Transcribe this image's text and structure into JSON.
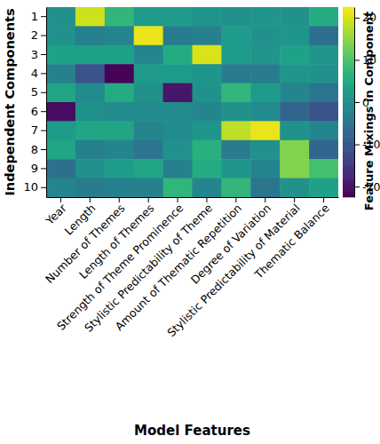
{
  "chart_data": {
    "type": "heatmap",
    "x_label": "Model Features",
    "y_label": "Independent Components",
    "x_categories": [
      "Year",
      "Length",
      "Number of Themes",
      "Length of Themes",
      "Strength of Theme Prominence",
      "Stylistic Predictability of Theme",
      "Amount of Thematic Repetition",
      "Degree of Variation",
      "Stylistic Predictability of Material",
      "Thematic Balance"
    ],
    "y_categories": [
      1,
      2,
      3,
      4,
      5,
      6,
      7,
      8,
      9,
      10
    ],
    "values": [
      [
        0,
        19,
        7,
        2,
        2,
        1,
        0,
        1,
        0,
        5
      ],
      [
        0,
        -3,
        -2,
        21,
        -4,
        -3,
        2,
        0,
        1,
        -6
      ],
      [
        3,
        3,
        3,
        -2,
        5,
        20,
        2,
        1,
        3,
        1
      ],
      [
        -3,
        -11,
        -22,
        2,
        2,
        1,
        -4,
        -4,
        1,
        0
      ],
      [
        4,
        -1,
        5,
        0,
        -20,
        0,
        7,
        2,
        -2,
        -5
      ],
      [
        -21,
        0,
        -1,
        -1,
        -1,
        -2,
        0,
        -1,
        -8,
        -11
      ],
      [
        2,
        4,
        4,
        -2,
        -1,
        1,
        18,
        21,
        0,
        -2
      ],
      [
        4,
        -3,
        -2,
        -5,
        0,
        6,
        -4,
        0,
        14,
        -8
      ],
      [
        -6,
        0,
        2,
        4,
        -3,
        5,
        1,
        -2,
        14,
        9
      ],
      [
        -2,
        -4,
        -3,
        -3,
        7,
        -2,
        7,
        -5,
        0,
        3
      ]
    ],
    "color": "viridis",
    "colorbar": {
      "label": "Feature Mixings in Component",
      "range": [
        -22.5,
        22.5
      ],
      "ticks": [
        -20,
        -10,
        0,
        10,
        20
      ]
    }
  }
}
